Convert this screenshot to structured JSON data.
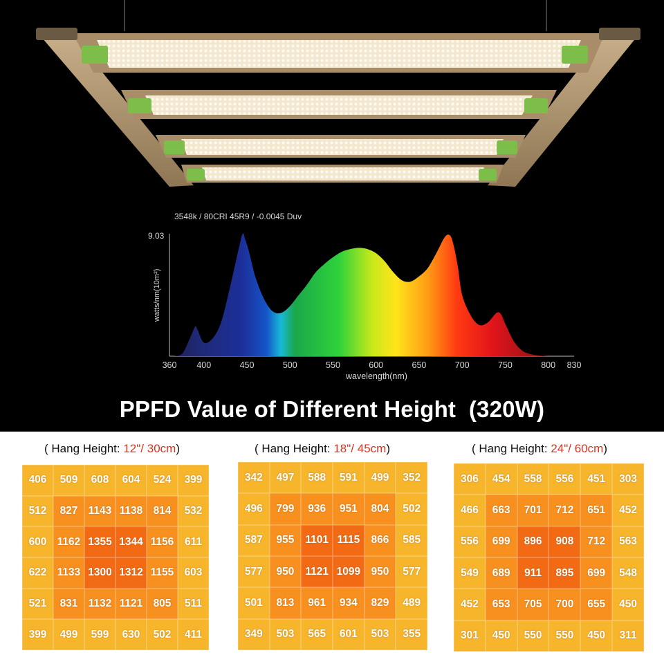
{
  "hero_image": {
    "subject": "LED grow light with four parallel light bars mounted on an aluminium frame"
  },
  "spectrum": {
    "header": "3548k / 80CRI 45R9 / -0.0045 Duv",
    "y_max_label": "9.03",
    "ylabel": "watts/nm(10m²)",
    "xlabel": "wavelength(nm)",
    "x_ticks": [
      "360",
      "400",
      "450",
      "500",
      "550",
      "600",
      "650",
      "700",
      "750",
      "800",
      "830"
    ]
  },
  "chart_data": {
    "type": "area",
    "xlabel": "wavelength(nm)",
    "ylabel": "watts/nm(10m²)",
    "xlim": [
      360,
      830
    ],
    "ylim": [
      0,
      9.03
    ],
    "grid": false,
    "x": [
      365,
      375,
      385,
      390,
      393,
      400,
      410,
      420,
      430,
      440,
      445,
      448,
      452,
      460,
      470,
      480,
      490,
      500,
      510,
      520,
      530,
      540,
      550,
      560,
      570,
      580,
      590,
      600,
      610,
      620,
      630,
      640,
      650,
      660,
      670,
      680,
      686,
      690,
      695,
      700,
      710,
      720,
      730,
      740,
      745,
      750,
      760,
      770,
      780,
      790,
      800
    ],
    "values": [
      0.0,
      0.2,
      1.5,
      2.2,
      1.9,
      1.0,
      1.3,
      2.5,
      5.0,
      7.8,
      9.03,
      8.6,
      7.8,
      5.8,
      4.2,
      3.3,
      3.2,
      3.7,
      4.5,
      5.3,
      6.2,
      6.8,
      7.3,
      7.7,
      7.9,
      8.0,
      7.9,
      7.6,
      7.0,
      6.2,
      5.6,
      5.5,
      5.9,
      6.5,
      7.6,
      8.8,
      8.9,
      8.2,
      6.6,
      4.5,
      3.0,
      2.3,
      2.5,
      3.2,
      3.1,
      2.4,
      1.1,
      0.4,
      0.15,
      0.05,
      0.0
    ]
  },
  "title": "PPFD Value of Different Height  (320W)",
  "grids": [
    {
      "caption_pre": "( Hang Height: ",
      "caption_value": "12\"/ 30cm",
      "caption_post": ")",
      "rows": [
        [
          "406",
          "509",
          "608",
          "604",
          "524",
          "399"
        ],
        [
          "512",
          "827",
          "1143",
          "1138",
          "814",
          "532"
        ],
        [
          "600",
          "1162",
          "1355",
          "1344",
          "1156",
          "611"
        ],
        [
          "622",
          "1133",
          "1300",
          "1312",
          "1155",
          "603"
        ],
        [
          "521",
          "831",
          "1132",
          "1121",
          "805",
          "511"
        ],
        [
          "399",
          "499",
          "599",
          "630",
          "502",
          "411"
        ]
      ]
    },
    {
      "caption_pre": "( Hang Height: ",
      "caption_value": "18\"/ 45cm",
      "caption_post": ")",
      "rows": [
        [
          "342",
          "497",
          "588",
          "591",
          "499",
          "352"
        ],
        [
          "496",
          "799",
          "936",
          "951",
          "804",
          "502"
        ],
        [
          "587",
          "955",
          "1101",
          "1115",
          "866",
          "585"
        ],
        [
          "577",
          "950",
          "1121",
          "1099",
          "950",
          "577"
        ],
        [
          "501",
          "813",
          "961",
          "934",
          "829",
          "489"
        ],
        [
          "349",
          "503",
          "565",
          "601",
          "503",
          "355"
        ]
      ]
    },
    {
      "caption_pre": "( Hang Height: ",
      "caption_value": "24\"/ 60cm",
      "caption_post": ")",
      "rows": [
        [
          "306",
          "454",
          "558",
          "556",
          "451",
          "303"
        ],
        [
          "466",
          "663",
          "701",
          "712",
          "651",
          "452"
        ],
        [
          "556",
          "699",
          "896",
          "908",
          "712",
          "563"
        ],
        [
          "549",
          "689",
          "911",
          "895",
          "699",
          "548"
        ],
        [
          "452",
          "653",
          "705",
          "700",
          "655",
          "450"
        ],
        [
          "301",
          "450",
          "550",
          "550",
          "450",
          "311"
        ]
      ]
    }
  ]
}
